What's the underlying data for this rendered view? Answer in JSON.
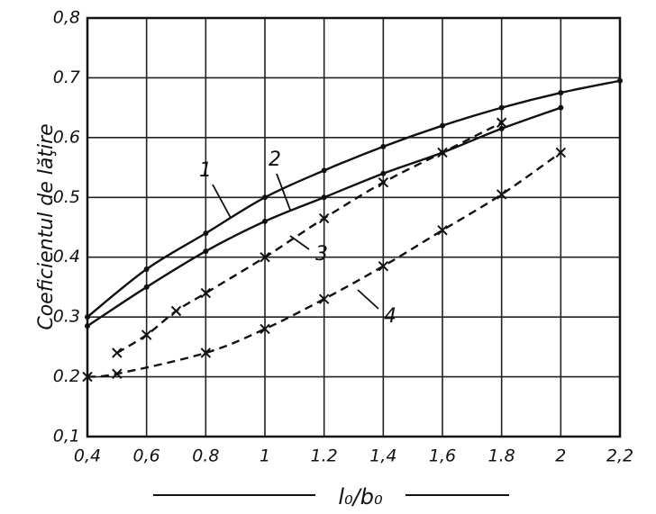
{
  "chart_data": {
    "type": "line",
    "ylabel": "Coeficientul de lăţire",
    "xlabel": "l₀/b₀",
    "xlim": [
      0.4,
      2.2
    ],
    "ylim": [
      0.1,
      0.8
    ],
    "xticks": [
      {
        "value": 0.4,
        "label": "0,4"
      },
      {
        "value": 0.6,
        "label": "0,6"
      },
      0.8,
      1,
      1.2,
      {
        "value": 1.4,
        "label": "1,4"
      },
      {
        "value": 1.6,
        "label": "1,6"
      },
      1.8,
      2,
      {
        "value": 2.2,
        "label": "2,2"
      }
    ],
    "yticks": [
      {
        "value": 0.1,
        "label": "0,1"
      },
      0.2,
      0.3,
      0.4,
      0.5,
      0.6,
      0.7,
      {
        "value": 0.8,
        "label": "0,8"
      }
    ],
    "grid": true,
    "series": [
      {
        "name": "1",
        "color": "#111111",
        "dash": false,
        "marker": "dot",
        "x": [
          0.4,
          0.6,
          0.8,
          1,
          1.2,
          1.4,
          1.6,
          1.8,
          2,
          2.2
        ],
        "values": [
          0.3,
          0.38,
          0.44,
          0.5,
          0.545,
          0.585,
          0.62,
          0.65,
          0.675,
          0.695
        ]
      },
      {
        "name": "2",
        "color": "#111111",
        "dash": false,
        "marker": "dot",
        "x": [
          0.4,
          0.6,
          0.8,
          1,
          1.2,
          1.4,
          1.6,
          1.8,
          2
        ],
        "values": [
          0.285,
          0.35,
          0.41,
          0.46,
          0.5,
          0.54,
          0.575,
          0.615,
          0.65
        ]
      },
      {
        "name": "3",
        "color": "#111111",
        "dash": true,
        "marker": "cross",
        "x": [
          0.5,
          0.6,
          0.7,
          0.8,
          1,
          1.2,
          1.4,
          1.6,
          1.8
        ],
        "values": [
          0.24,
          0.27,
          0.31,
          0.34,
          0.4,
          0.465,
          0.525,
          0.575,
          0.625
        ]
      },
      {
        "name": "4",
        "color": "#111111",
        "dash": true,
        "marker": "cross",
        "x": [
          0.4,
          0.5,
          0.8,
          1,
          1.2,
          1.4,
          1.6,
          1.8,
          2
        ],
        "values": [
          0.2,
          0.205,
          0.24,
          0.28,
          0.33,
          0.385,
          0.445,
          0.505,
          0.575
        ]
      }
    ]
  }
}
